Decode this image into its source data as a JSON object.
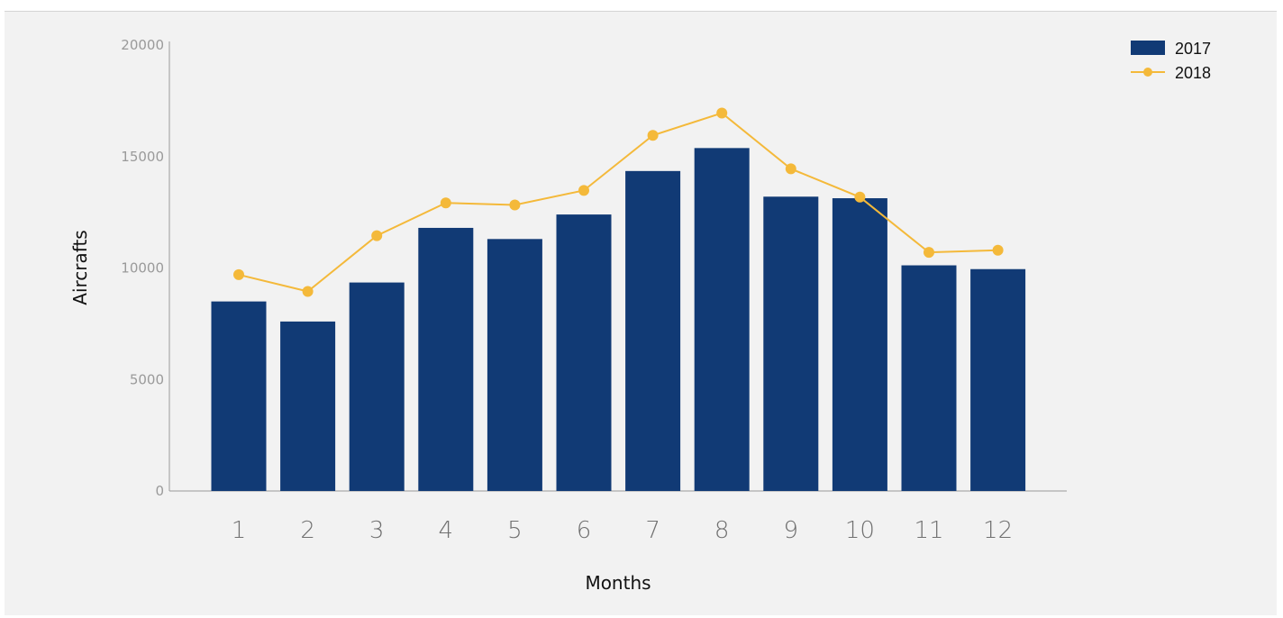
{
  "chart_data": {
    "type": "bar",
    "title": "",
    "xlabel": "Months",
    "ylabel": "Aircrafts",
    "categories": [
      "1",
      "2",
      "3",
      "4",
      "5",
      "6",
      "7",
      "8",
      "9",
      "10",
      "11",
      "12"
    ],
    "ylim": [
      0,
      20000
    ],
    "yticks": [
      "0",
      "5000",
      "10000",
      "15000",
      "20000"
    ],
    "grid": false,
    "legend_position": "top-right",
    "series": [
      {
        "name": "2017",
        "type": "bar",
        "color": "#113a75",
        "values": [
          8500,
          7600,
          9350,
          11800,
          11300,
          12400,
          14350,
          15380,
          13200,
          13130,
          10120,
          9950
        ]
      },
      {
        "name": "2018",
        "type": "line",
        "color": "#f4b93a",
        "values": [
          9700,
          8950,
          11450,
          12920,
          12830,
          13480,
          15950,
          16950,
          14450,
          13180,
          10700,
          10800
        ]
      }
    ]
  }
}
